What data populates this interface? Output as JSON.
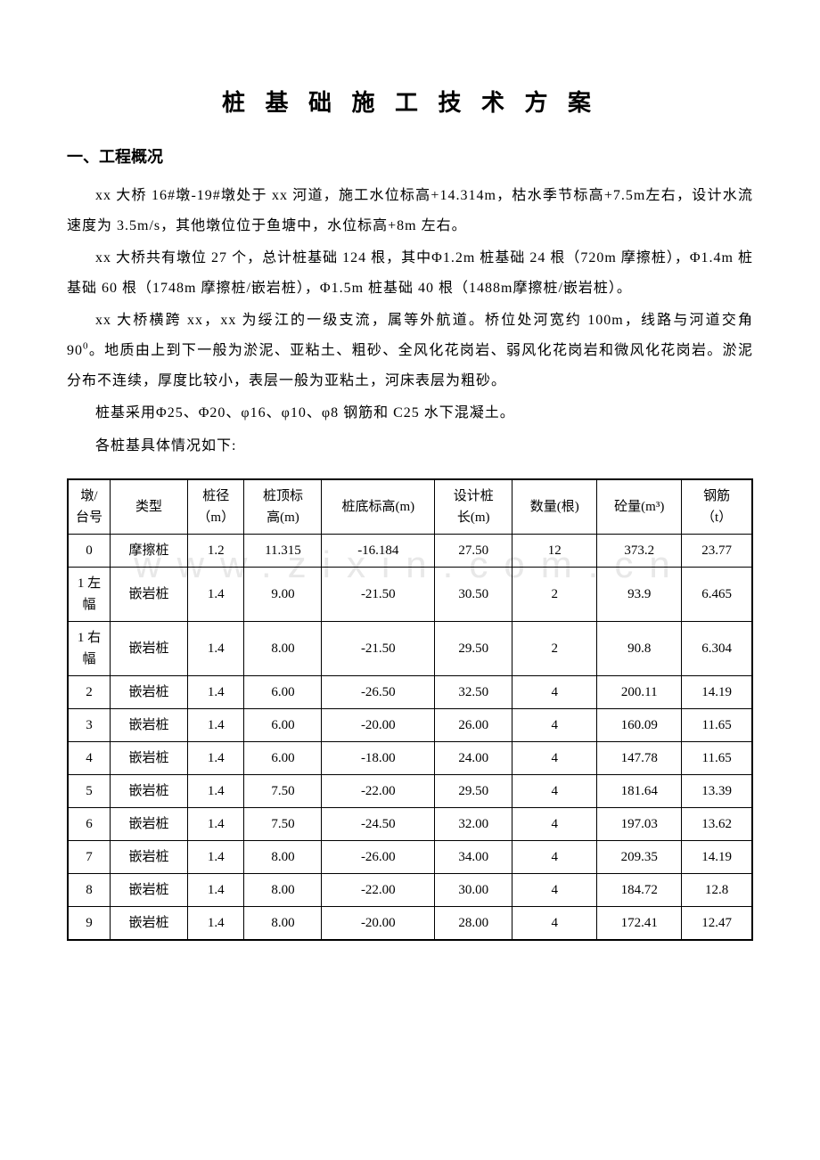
{
  "title": "桩 基 础 施 工 技 术 方 案",
  "section1_header": "一、工程概况",
  "para1": "xx 大桥 16#墩-19#墩处于 xx 河道，施工水位标高+14.314m，枯水季节标高+7.5m左右，设计水流速度为 3.5m/s，其他墩位位于鱼塘中，水位标高+8m 左右。",
  "para2_a": "xx 大桥共有墩位 27 个，总计桩基础 124 根，其中Φ1.2m 桩基础 24 根（720m 摩擦桩），Φ1.4m 桩基础 60 根（1748m 摩擦桩/嵌岩桩），Φ1.5m 桩基础 40 根（1488m摩擦桩/嵌岩桩）。",
  "para3_a": "xx 大桥横跨 xx，xx 为绥江的一级支流，属等外航道。桥位处河宽约 100m，线路与河道交角 90",
  "para3_sup": "0",
  "para3_b": "。地质由上到下一般为淤泥、亚粘土、粗砂、全风化花岗岩、弱风化花岗岩和微风化花岗岩。淤泥分布不连续，厚度比较小，表层一般为亚粘土，河床表层为粗砂。",
  "para4": "桩基采用Φ25、Φ20、φ16、φ10、φ8 钢筋和 C25 水下混凝土。",
  "para5": "各桩基具体情况如下:",
  "watermark": "www.zixin.com.cn",
  "table": {
    "columns": [
      {
        "line1": "墩/",
        "line2": "台号"
      },
      {
        "line1": "类型",
        "line2": ""
      },
      {
        "line1": "桩径",
        "line2": "（m）"
      },
      {
        "line1": "桩顶标",
        "line2": "高(m)"
      },
      {
        "line1": "桩底标高(m)",
        "line2": ""
      },
      {
        "line1": "设计桩",
        "line2": "长(m)"
      },
      {
        "line1": "数量(根)",
        "line2": ""
      },
      {
        "line1": "砼量(m³)",
        "line2": ""
      },
      {
        "line1": "钢筋",
        "line2": "（t）"
      }
    ],
    "rows": [
      [
        "0",
        "摩擦桩",
        "1.2",
        "11.315",
        "-16.184",
        "27.50",
        "12",
        "373.2",
        "23.77"
      ],
      [
        "1 左幅",
        "嵌岩桩",
        "1.4",
        "9.00",
        "-21.50",
        "30.50",
        "2",
        "93.9",
        "6.465"
      ],
      [
        "1 右幅",
        "嵌岩桩",
        "1.4",
        "8.00",
        "-21.50",
        "29.50",
        "2",
        "90.8",
        "6.304"
      ],
      [
        "2",
        "嵌岩桩",
        "1.4",
        "6.00",
        "-26.50",
        "32.50",
        "4",
        "200.11",
        "14.19"
      ],
      [
        "3",
        "嵌岩桩",
        "1.4",
        "6.00",
        "-20.00",
        "26.00",
        "4",
        "160.09",
        "11.65"
      ],
      [
        "4",
        "嵌岩桩",
        "1.4",
        "6.00",
        "-18.00",
        "24.00",
        "4",
        "147.78",
        "11.65"
      ],
      [
        "5",
        "嵌岩桩",
        "1.4",
        "7.50",
        "-22.00",
        "29.50",
        "4",
        "181.64",
        "13.39"
      ],
      [
        "6",
        "嵌岩桩",
        "1.4",
        "7.50",
        "-24.50",
        "32.00",
        "4",
        "197.03",
        "13.62"
      ],
      [
        "7",
        "嵌岩桩",
        "1.4",
        "8.00",
        "-26.00",
        "34.00",
        "4",
        "209.35",
        "14.19"
      ],
      [
        "8",
        "嵌岩桩",
        "1.4",
        "8.00",
        "-22.00",
        "30.00",
        "4",
        "184.72",
        "12.8"
      ],
      [
        "9",
        "嵌岩桩",
        "1.4",
        "8.00",
        "-20.00",
        "28.00",
        "4",
        "172.41",
        "12.47"
      ]
    ]
  }
}
